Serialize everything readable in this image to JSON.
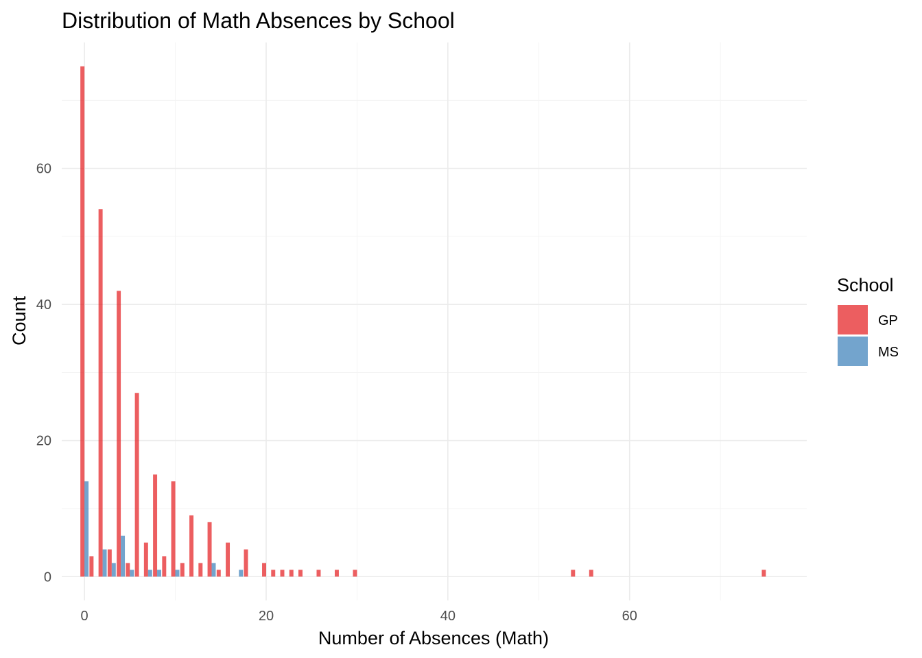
{
  "chart_data": {
    "type": "bar",
    "title": "Distribution of Math Absences by School",
    "xlabel": "Number of Absences (Math)",
    "ylabel": "Count",
    "xlim": [
      -2.5,
      79.5
    ],
    "ylim": [
      -3.5,
      78.5
    ],
    "x_ticks": [
      0,
      20,
      40,
      60
    ],
    "y_ticks": [
      0,
      20,
      40,
      60
    ],
    "grid": true,
    "legend": {
      "title": "School",
      "position": "right"
    },
    "series": [
      {
        "name": "GP",
        "color": "#E41A1C",
        "points": [
          {
            "x": 0,
            "y": 75
          },
          {
            "x": 1,
            "y": 3
          },
          {
            "x": 2,
            "y": 54
          },
          {
            "x": 3,
            "y": 4
          },
          {
            "x": 4,
            "y": 42
          },
          {
            "x": 5,
            "y": 2
          },
          {
            "x": 6,
            "y": 27
          },
          {
            "x": 7,
            "y": 5
          },
          {
            "x": 8,
            "y": 15
          },
          {
            "x": 9,
            "y": 3
          },
          {
            "x": 10,
            "y": 14
          },
          {
            "x": 11,
            "y": 2
          },
          {
            "x": 12,
            "y": 9
          },
          {
            "x": 13,
            "y": 2
          },
          {
            "x": 14,
            "y": 8
          },
          {
            "x": 15,
            "y": 1
          },
          {
            "x": 16,
            "y": 5
          },
          {
            "x": 18,
            "y": 4
          },
          {
            "x": 20,
            "y": 2
          },
          {
            "x": 21,
            "y": 1
          },
          {
            "x": 22,
            "y": 1
          },
          {
            "x": 23,
            "y": 1
          },
          {
            "x": 24,
            "y": 1
          },
          {
            "x": 26,
            "y": 1
          },
          {
            "x": 28,
            "y": 1
          },
          {
            "x": 30,
            "y": 1
          },
          {
            "x": 54,
            "y": 1
          },
          {
            "x": 56,
            "y": 1
          },
          {
            "x": 75,
            "y": 1
          }
        ]
      },
      {
        "name": "MS",
        "color": "#377EB8",
        "points": [
          {
            "x": 0,
            "y": 14
          },
          {
            "x": 2,
            "y": 4
          },
          {
            "x": 3,
            "y": 2
          },
          {
            "x": 4,
            "y": 6
          },
          {
            "x": 5,
            "y": 1
          },
          {
            "x": 7,
            "y": 1
          },
          {
            "x": 8,
            "y": 1
          },
          {
            "x": 10,
            "y": 1
          },
          {
            "x": 14,
            "y": 2
          },
          {
            "x": 17,
            "y": 1
          }
        ]
      }
    ]
  }
}
